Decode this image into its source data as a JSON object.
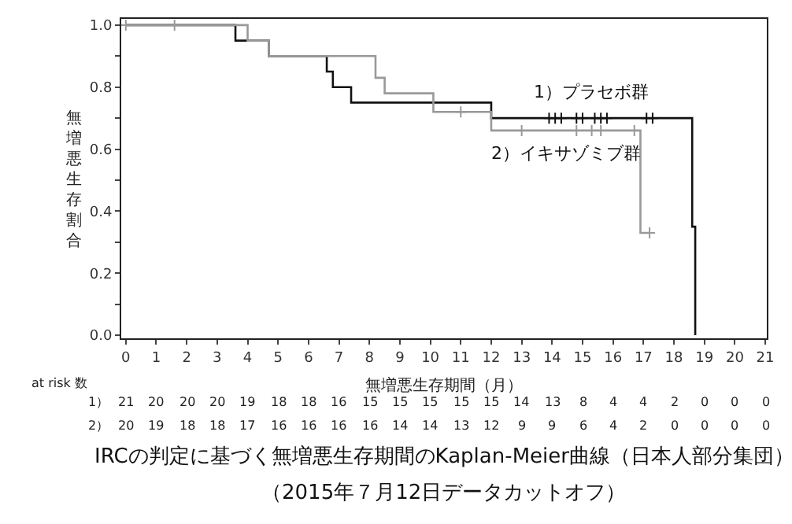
{
  "chart_data": {
    "type": "step",
    "title": "IRCの判定に基づく無増悪生存期間のKaplan-Meier曲線（日本人部分集団）",
    "subtitle": "（2015年７月12日データカットオフ）",
    "xlabel": "無増悪生存期間（月）",
    "ylabel": "無増悪生存割合",
    "series": [
      {
        "name": "1）プラセボ群",
        "color": "#111111",
        "x": [
          0,
          3.6,
          4.7,
          6.6,
          6.8,
          7.4,
          12.0,
          18.6,
          18.7,
          18.7
        ],
        "values": [
          1.0,
          0.95,
          0.9,
          0.85,
          0.8,
          0.75,
          0.7,
          0.35,
          0.35,
          0.0
        ]
      },
      {
        "name": "2）イキサゾミブ群",
        "color": "#999999",
        "x": [
          0,
          4.0,
          4.7,
          8.2,
          8.5,
          10.1,
          12.0,
          16.9,
          17.2
        ],
        "values": [
          1.0,
          0.95,
          0.9,
          0.83,
          0.78,
          0.72,
          0.66,
          0.33,
          0.33
        ]
      },
      {
        "type": "scatter",
        "marker": "cross",
        "color": "#111111",
        "x": [
          13.9,
          14.1,
          14.3,
          14.8,
          15.0,
          15.4,
          15.6,
          15.8,
          17.1,
          17.3
        ],
        "values": [
          0.7,
          0.7,
          0.7,
          0.7,
          0.7,
          0.7,
          0.7,
          0.7,
          0.7,
          0.7
        ]
      },
      {
        "type": "scatter",
        "marker": "cross",
        "color": "#999999",
        "x": [
          0,
          1.6,
          11.0,
          13.0,
          14.8,
          15.3,
          15.6,
          16.7,
          17.2
        ],
        "values": [
          1.0,
          1.0,
          0.72,
          0.66,
          0.66,
          0.66,
          0.66,
          0.66,
          0.33
        ]
      }
    ],
    "annotations": [
      "at risk 数",
      "1） 21 20 20 20 19 18 18 16 15 15 15 15 15 14 13 8 4 4 2 0 0 0",
      "2） 20 19 18 18 17 16 16 16 16 14 14 13 12 9 9 6 4 2 0 0 0 0"
    ],
    "xlim": [
      -0.15,
      21.05
    ],
    "ylim": [
      -0.01,
      1.02
    ],
    "xticks": [
      0,
      1,
      2,
      3,
      4,
      5,
      6,
      7,
      8,
      9,
      10,
      11,
      12,
      13,
      14,
      15,
      16,
      17,
      18,
      19,
      20,
      21
    ],
    "yticks": [
      {
        "value": 0,
        "label": "0.0"
      },
      {
        "value": 0.1,
        "label": null
      },
      {
        "value": 0.2,
        "label": "0.2"
      },
      {
        "value": 0.3,
        "label": null
      },
      {
        "value": 0.4,
        "label": "0.4"
      },
      {
        "value": 0.5,
        "label": null
      },
      {
        "value": 0.6,
        "label": "0.6"
      },
      {
        "value": 0.7,
        "label": null
      },
      {
        "value": 0.8,
        "label": "0.8"
      },
      {
        "value": 0.9,
        "label": null
      },
      {
        "value": 1.0,
        "label": "1.0"
      }
    ],
    "legend": false
  }
}
